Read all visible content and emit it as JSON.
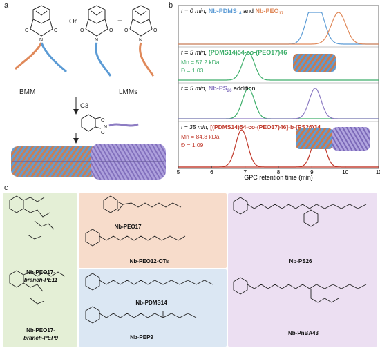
{
  "panel_labels": {
    "a": "a",
    "b": "b",
    "c": "c"
  },
  "panel_a": {
    "or_text": "Or",
    "plus_text": "+",
    "bmm_label": "BMM",
    "lmms_label": "LMMs",
    "catalyst_label": "G3"
  },
  "panel_b": {
    "rows": [
      {
        "time": "t = 0 min, ",
        "desc1": "Nb-PDMS",
        "sub1": "14",
        "joiner": " and ",
        "desc2": "Nb-PEO",
        "sub2": "17"
      },
      {
        "time": "t = 5 min, ",
        "desc": "(PDMS14)54-co-(PEO17)46",
        "mn": "Mn = 57.2 kDa",
        "dispersity": "Đ = 1.03"
      },
      {
        "time": "t = 5 min, ",
        "desc1": "Nb-PS",
        "sub1": "26",
        "suffix": " addition"
      },
      {
        "time": "t = 35 min, ",
        "desc": "[(PDMS14)54-co-(PEO17)46]-b-(PS26)34",
        "mn": "Mn = 84.8 kDa",
        "dispersity": "Đ = 1.09"
      }
    ],
    "xlabel": "GPC retention time (min)"
  },
  "chart_data": {
    "type": "line",
    "xlabel": "GPC retention time (min)",
    "xlim": [
      5,
      11
    ],
    "x_ticks": [
      5,
      6,
      7,
      8,
      9,
      10,
      11
    ],
    "series": [
      {
        "name": "Nb-PDMS14",
        "panel": 1,
        "peak_retention_min": 9.2,
        "color": "#5b9bd5"
      },
      {
        "name": "Nb-PEO17",
        "panel": 1,
        "peak_retention_min": 9.8,
        "color": "#e0895a"
      },
      {
        "name": "(PDMS14)54-co-(PEO17)46",
        "panel": 2,
        "peak_retention_min": 7.1,
        "color": "#3dae6a"
      },
      {
        "name": "(PDMS14)54-co-(PEO17)46",
        "panel": 3,
        "peak_retention_min": 7.1,
        "color": "#3dae6a"
      },
      {
        "name": "Nb-PS26",
        "panel": 3,
        "peak_retention_min": 9.1,
        "color": "#8d7cc3"
      },
      {
        "name": "[(PDMS14)54-co-(PEO17)46]-b-(PS26)34",
        "panel": 4,
        "peak_retention_min": 6.9,
        "color": "#c0392b"
      },
      {
        "name": "Nb-PS26",
        "panel": 4,
        "peak_retention_min": 9.2,
        "color": "#c0392b"
      }
    ]
  },
  "panel_c": {
    "compounds": [
      {
        "id": "peo-pe",
        "line1": "Nb-PEO17-",
        "line2": "branch-PE11"
      },
      {
        "id": "peo-pep",
        "line1": "Nb-PEO17-",
        "line2": "branch-PEP9"
      },
      {
        "id": "peo",
        "line1": "Nb-PEO17"
      },
      {
        "id": "peo-ots",
        "line1": "Nb-PEO12-OTs"
      },
      {
        "id": "pdms",
        "line1": "Nb-PDMS14"
      },
      {
        "id": "pep",
        "line1": "Nb-PEP9"
      },
      {
        "id": "ps",
        "line1": "Nb-PS26"
      },
      {
        "id": "pnba",
        "line1": "Nb-PnBA43"
      }
    ],
    "colors": {
      "green": "#e4efd6",
      "orange": "#f7dccb",
      "blue": "#dbe7f3",
      "purple": "#ecdff2"
    }
  }
}
